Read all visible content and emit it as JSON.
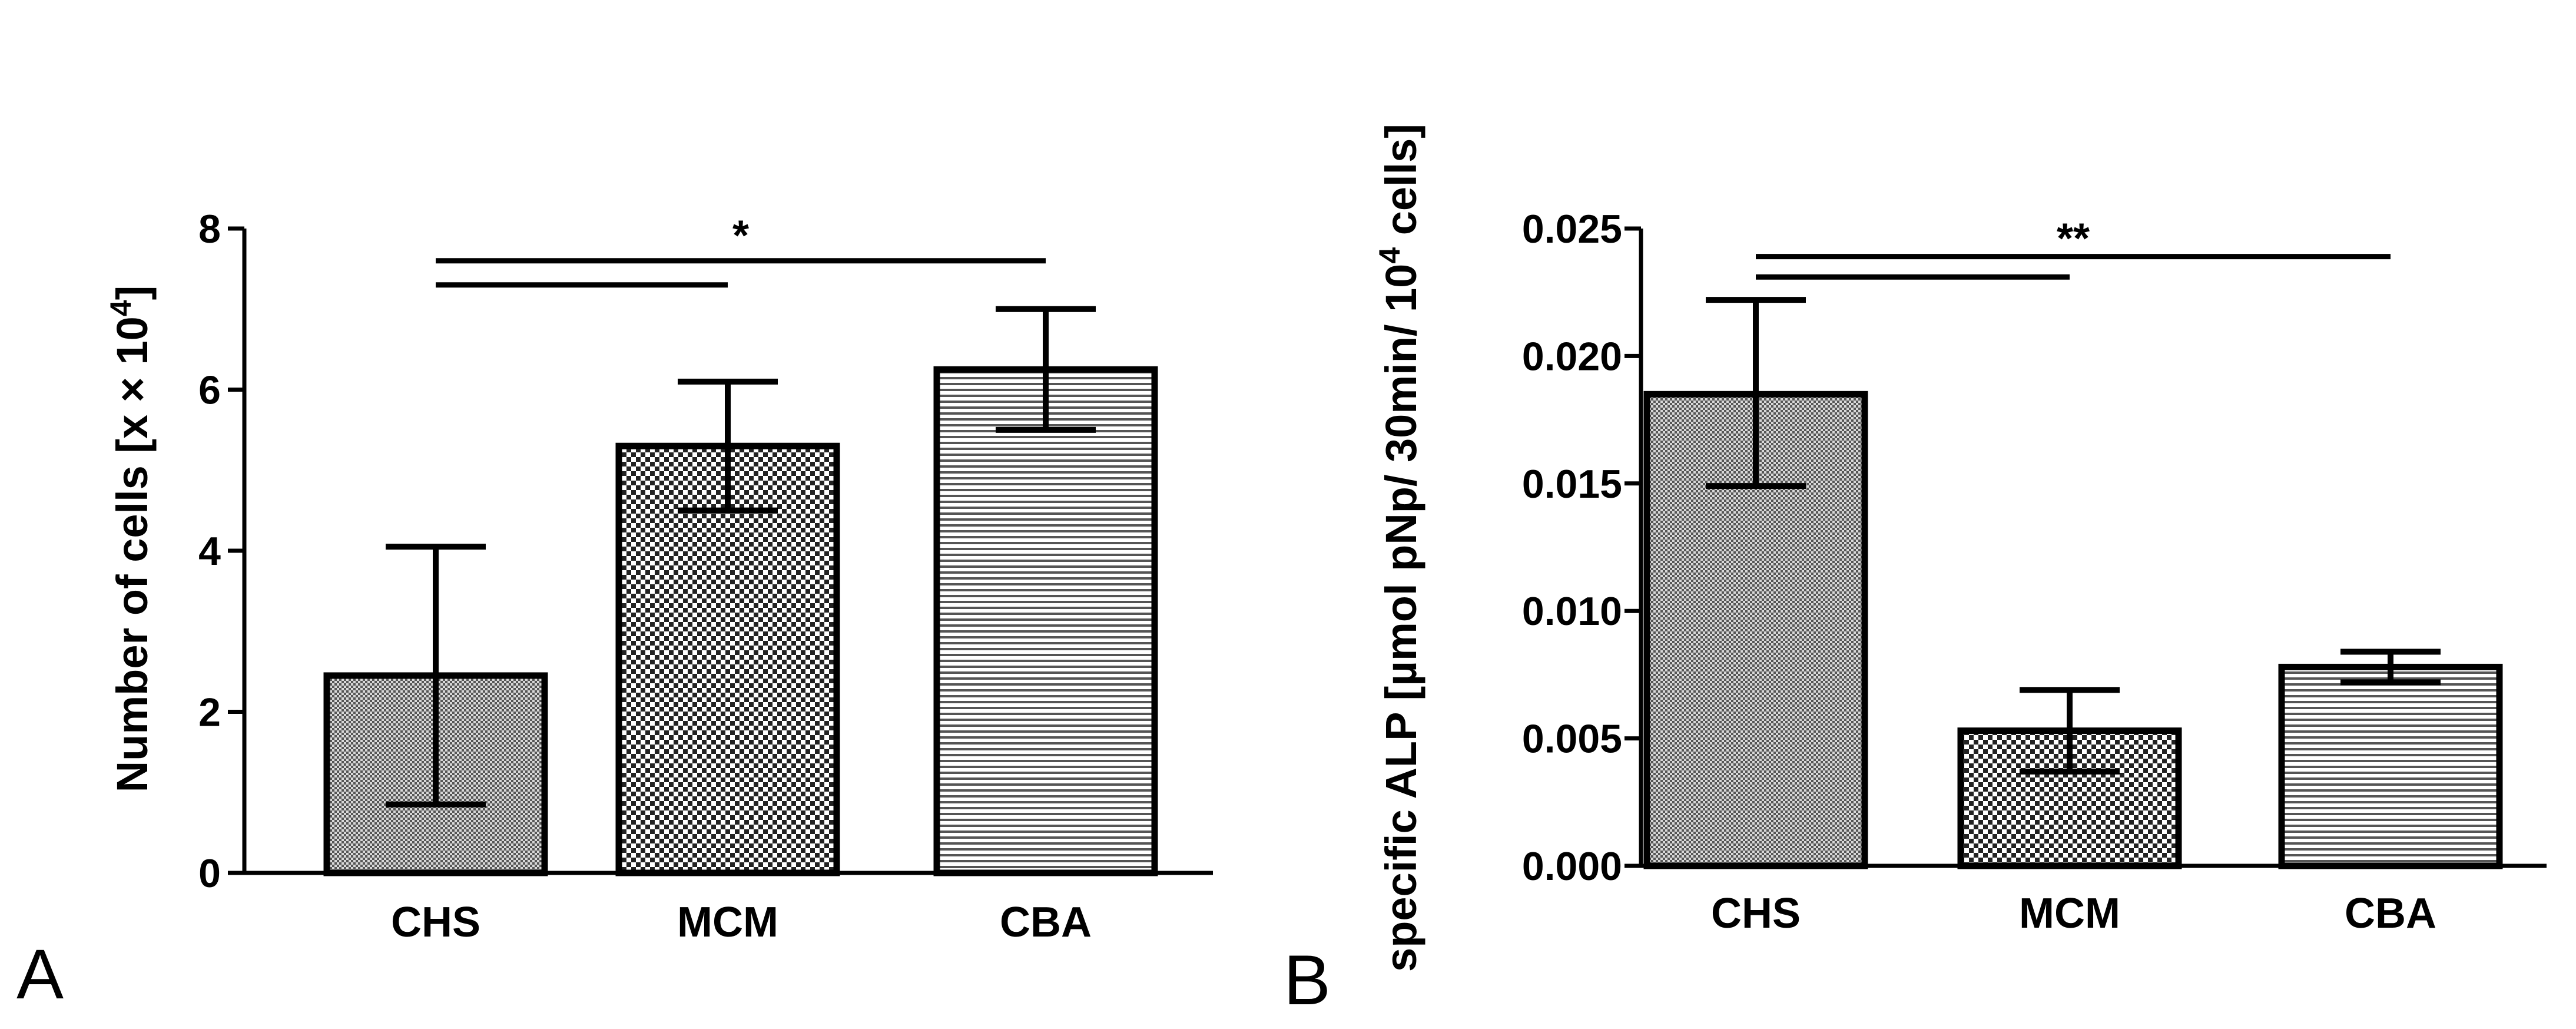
{
  "chart_data": [
    {
      "type": "bar",
      "panel_label": "A",
      "categories": [
        "CHS",
        "MCM",
        "CBA"
      ],
      "values": [
        2.45,
        5.3,
        6.25
      ],
      "error_upper": [
        4.05,
        6.1,
        7.0
      ],
      "error_lower": [
        0.85,
        4.5,
        5.5
      ],
      "patterns": [
        "fine-dots",
        "checker",
        "horizontal-lines"
      ],
      "ylabel_main": "Number of cells [x × 10",
      "ylabel_sup": "4",
      "ylabel_end": "]",
      "xlabel": "",
      "ylim": [
        0,
        8
      ],
      "yticks": [
        "0",
        "2",
        "4",
        "6",
        "8"
      ],
      "significance": [
        {
          "from": "CHS",
          "to": "CBA",
          "label": "*",
          "level": 7.6
        },
        {
          "from": "CHS",
          "to": "MCM",
          "label": "",
          "level": 7.3
        }
      ]
    },
    {
      "type": "bar",
      "panel_label": "B",
      "categories": [
        "CHS",
        "MCM",
        "CBA"
      ],
      "values": [
        0.0185,
        0.0053,
        0.0078
      ],
      "error_upper": [
        0.0222,
        0.0069,
        0.0084
      ],
      "error_lower": [
        0.0149,
        0.0037,
        0.0072
      ],
      "patterns": [
        "fine-dots",
        "checker",
        "horizontal-lines"
      ],
      "ylabel_main": "specific ALP [µmol pNp/ 30min/ 10",
      "ylabel_sup": "4",
      "ylabel_end": " cells]",
      "xlabel": "",
      "ylim": [
        0,
        0.025
      ],
      "yticks": [
        "0.000",
        "0.005",
        "0.010",
        "0.015",
        "0.020",
        "0.025"
      ],
      "significance": [
        {
          "from": "CHS",
          "to": "CBA",
          "label": "**",
          "level": 0.0239
        },
        {
          "from": "CHS",
          "to": "MCM",
          "label": "",
          "level": 0.0231
        }
      ]
    }
  ]
}
